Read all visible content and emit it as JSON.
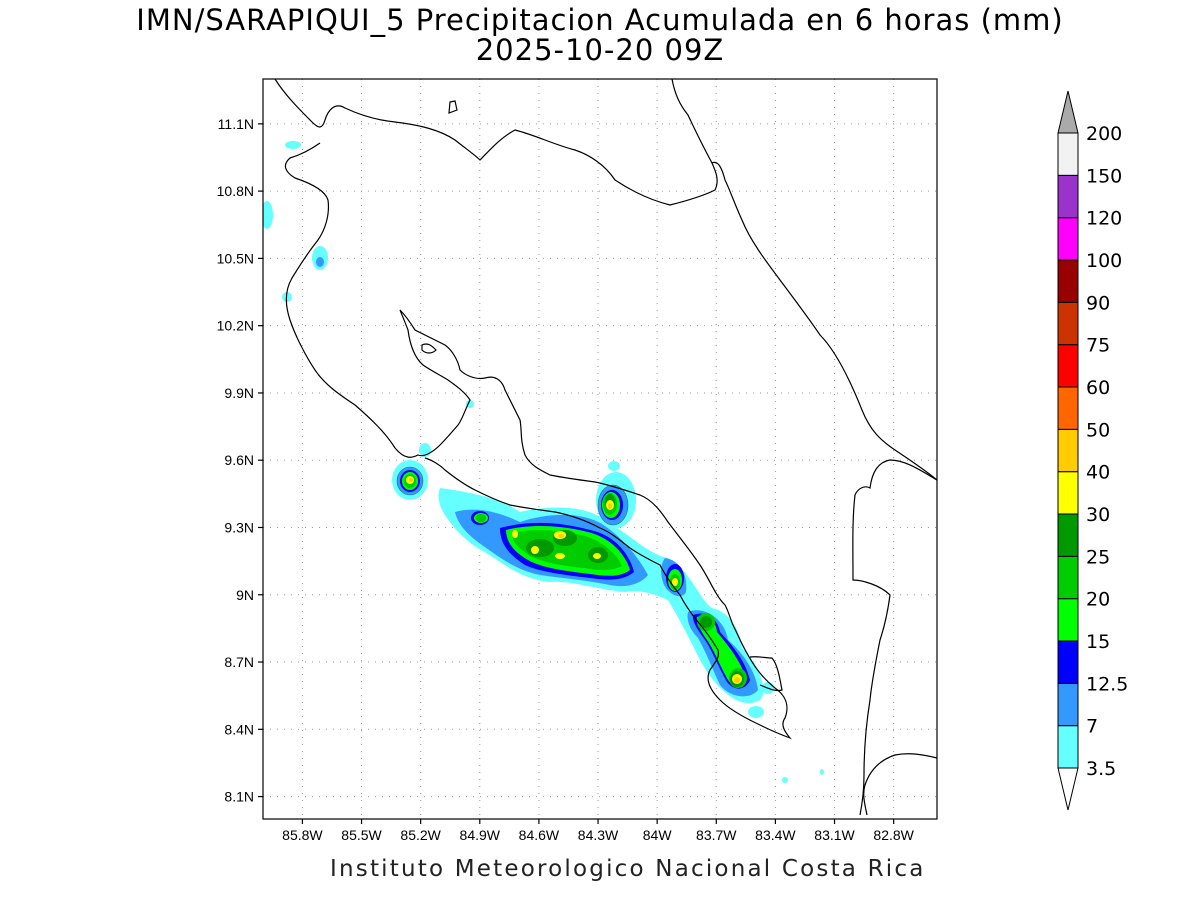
{
  "title": {
    "line1": "IMN/SARAPIQUI_5 Precipitacion Acumulada en 6 horas (mm)",
    "line2": "2025-10-20 09Z"
  },
  "footer": "Instituto Meteorologico Nacional Costa Rica",
  "map": {
    "lon_range": [
      -86.0,
      -82.58
    ],
    "lat_range": [
      8.0,
      11.3
    ],
    "lat_ticks": [
      "11.1N",
      "10.8N",
      "10.5N",
      "10.2N",
      "9.9N",
      "9.6N",
      "9.3N",
      "9N",
      "8.7N",
      "8.4N",
      "8.1N"
    ],
    "lon_ticks": [
      "85.8W",
      "85.5W",
      "85.2W",
      "84.9W",
      "84.6W",
      "84.3W",
      "84W",
      "83.7W",
      "83.4W",
      "83.1W",
      "82.8W"
    ],
    "grid": "dotted",
    "colorbar": {
      "levels": [
        "3.5",
        "7",
        "12.5",
        "15",
        "20",
        "25",
        "30",
        "40",
        "50",
        "60",
        "75",
        "90",
        "100",
        "120",
        "150",
        "200"
      ],
      "colors": [
        "#66ffff",
        "#3399ff",
        "#0000ff",
        "#00ff00",
        "#00cc00",
        "#009900",
        "#ffff00",
        "#ffcc00",
        "#ff6600",
        "#ff0000",
        "#cc3300",
        "#990000",
        "#ff00ff",
        "#9933cc",
        "#f2f2f2",
        "#aaaaaa"
      ]
    }
  }
}
